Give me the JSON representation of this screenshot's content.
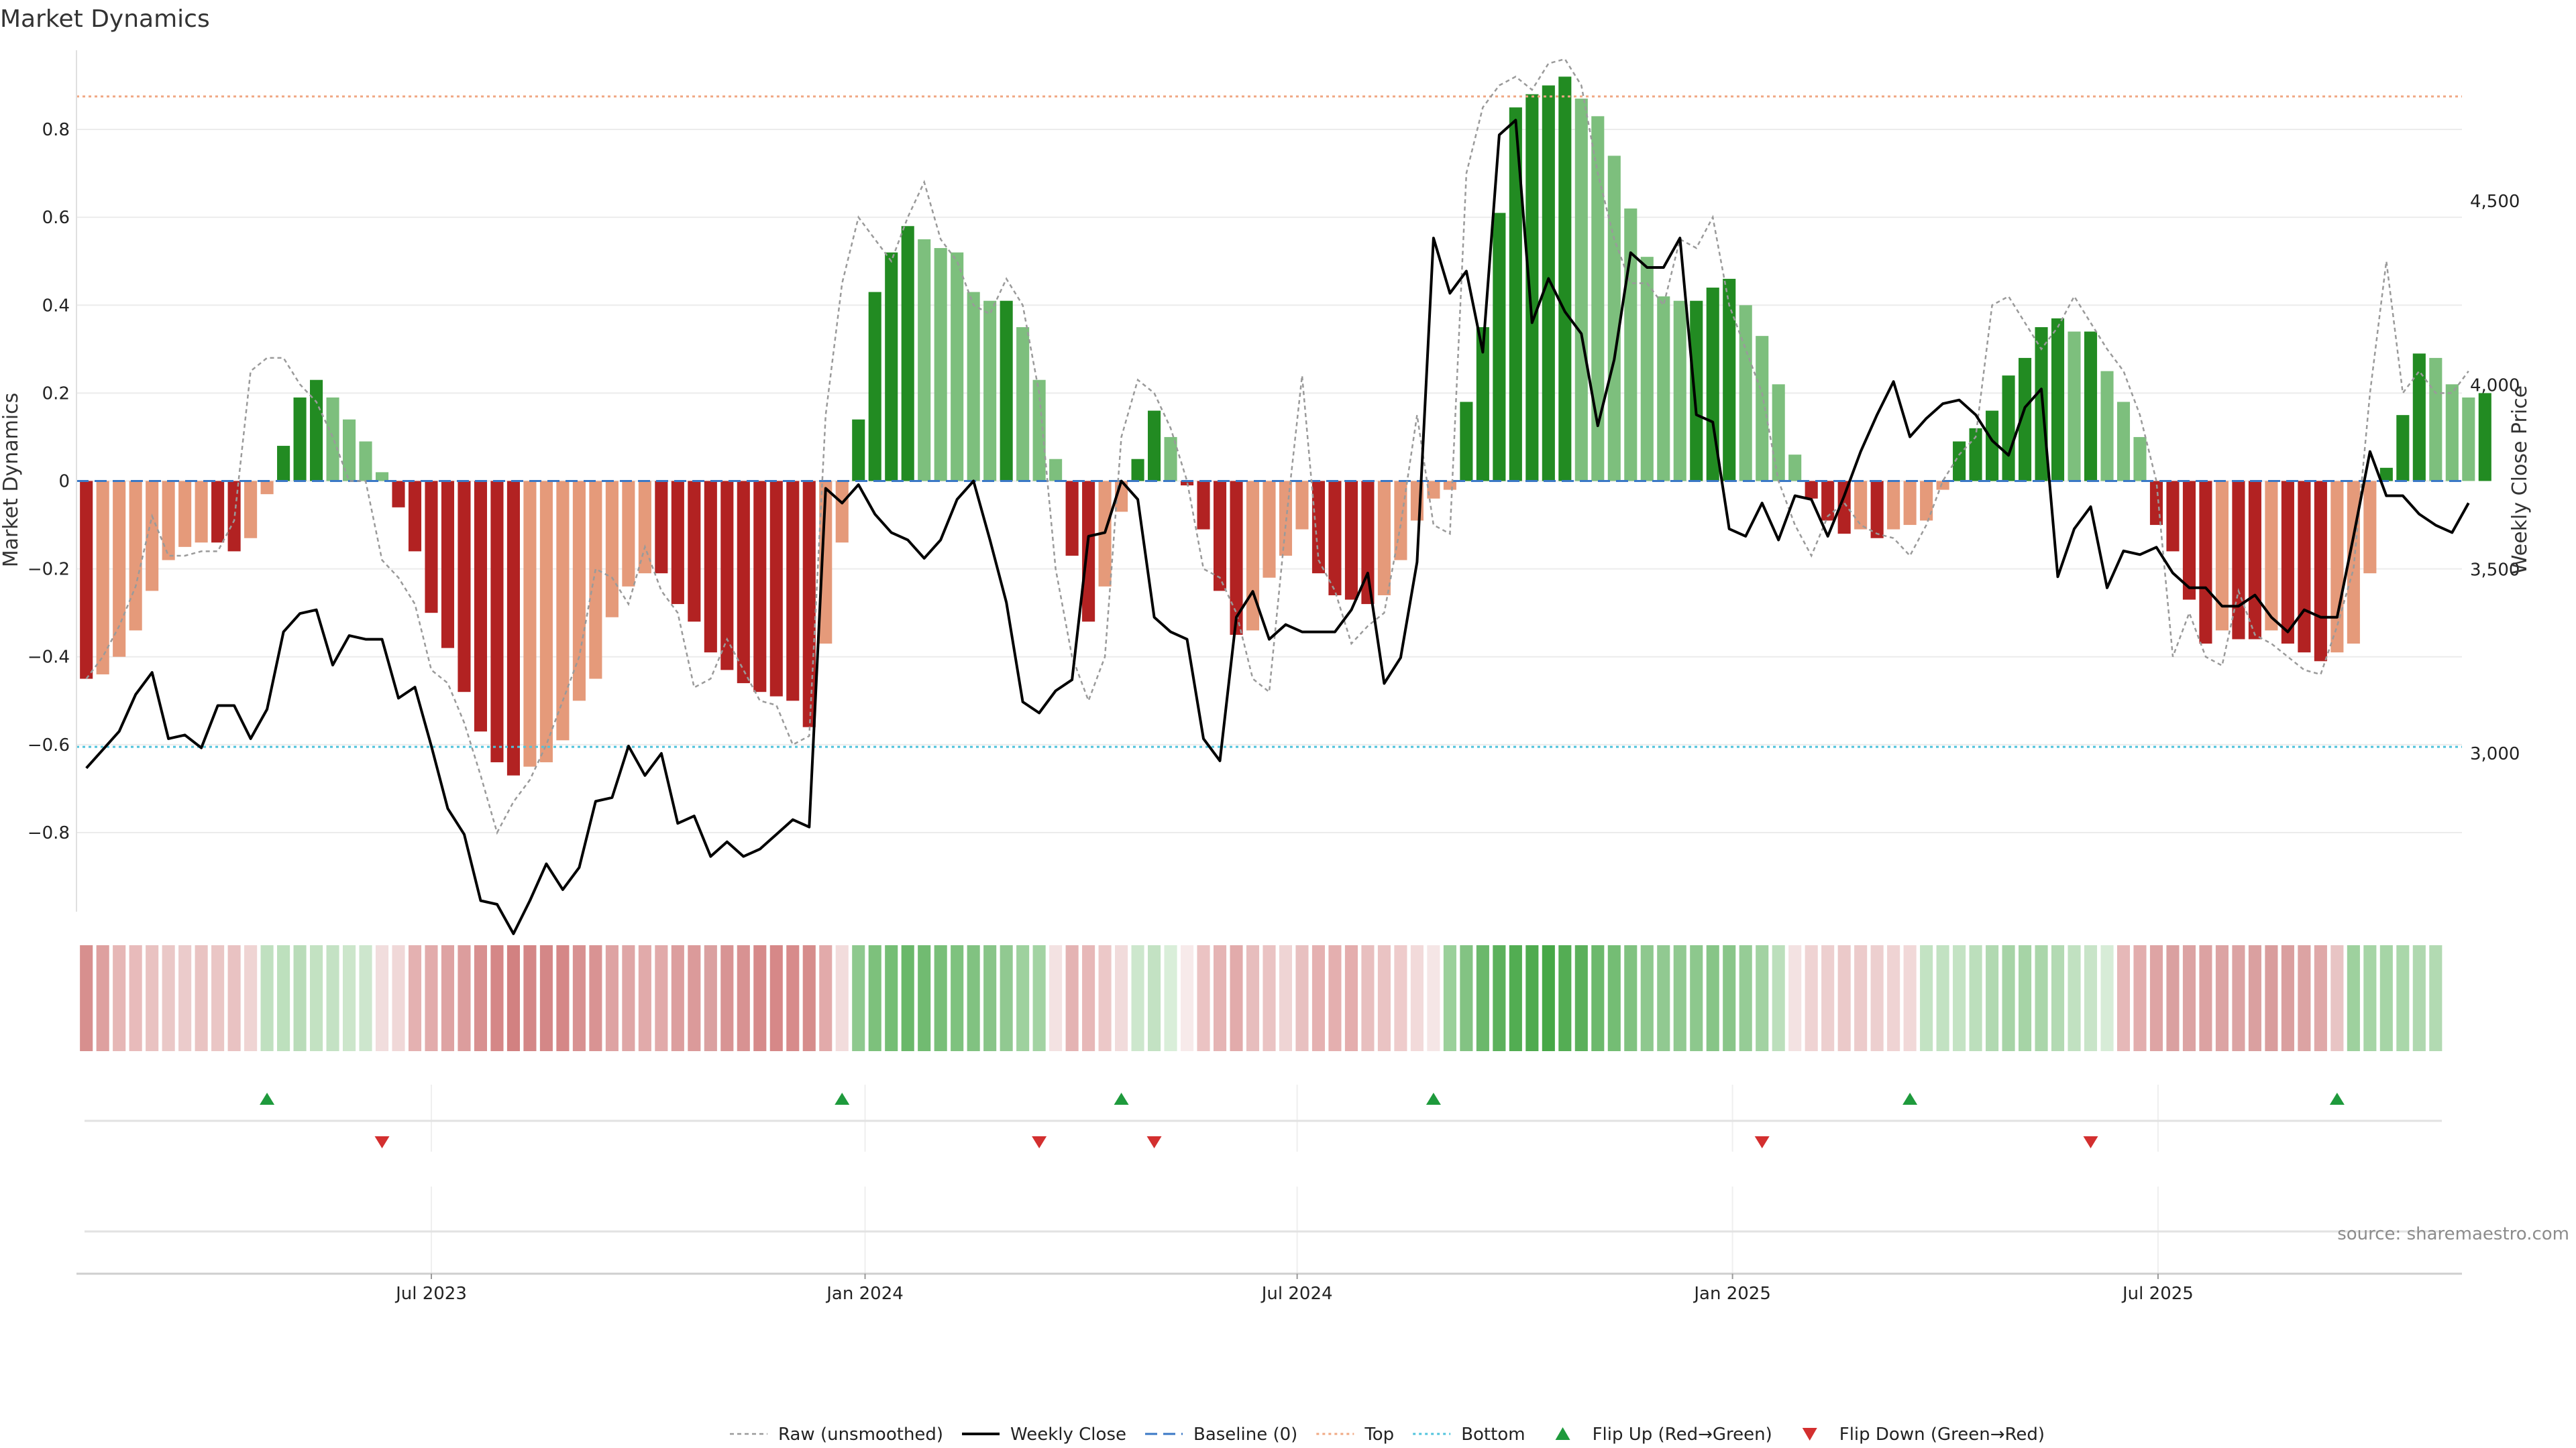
{
  "title": "Market Dynamics",
  "source": "source: sharemaestro.com",
  "chart_data": {
    "type": "bar+line",
    "title": "Market Dynamics",
    "ylabel": "Market Dynamics",
    "y2label": "Weekly Close Price",
    "ylim": [
      -0.98,
      0.98
    ],
    "y2lim": [
      2570,
      4910
    ],
    "yticks": [
      -0.8,
      -0.6,
      -0.4,
      -0.2,
      0,
      0.2,
      0.4,
      0.6,
      0.8
    ],
    "y2ticks": [
      3000,
      3500,
      4000,
      4500
    ],
    "ytick_labels": [
      "−0.8",
      "−0.6",
      "−0.4",
      "−0.2",
      "0",
      "0.2",
      "0.4",
      "0.6",
      "0.8"
    ],
    "y2tick_labels": [
      "3,000",
      "3,500",
      "4,000",
      "4,500"
    ],
    "top_line": 0.875,
    "bottom_line": -0.605,
    "xlim": [
      -0.6,
      144.6
    ],
    "xticks": [
      {
        "index": 21,
        "label": "Jul 2023"
      },
      {
        "index": 47.4,
        "label": "Jan 2024"
      },
      {
        "index": 73.7,
        "label": "Jul 2024"
      },
      {
        "index": 100.2,
        "label": "Jan 2025"
      },
      {
        "index": 126.1,
        "label": "Jul 2025"
      }
    ],
    "momentum": [
      -0.45,
      -0.44,
      -0.4,
      -0.34,
      -0.25,
      -0.18,
      -0.15,
      -0.14,
      -0.14,
      -0.16,
      -0.13,
      -0.03,
      0.08,
      0.19,
      0.23,
      0.19,
      0.14,
      0.09,
      0.02,
      -0.06,
      -0.16,
      -0.3,
      -0.38,
      -0.48,
      -0.57,
      -0.64,
      -0.67,
      -0.65,
      -0.64,
      -0.59,
      -0.5,
      -0.45,
      -0.31,
      -0.24,
      -0.21,
      -0.21,
      -0.28,
      -0.32,
      -0.39,
      -0.43,
      -0.46,
      -0.48,
      -0.49,
      -0.5,
      -0.56,
      -0.37,
      -0.14,
      0.14,
      0.43,
      0.52,
      0.58,
      0.55,
      0.53,
      0.52,
      0.43,
      0.41,
      0.41,
      0.35,
      0.23,
      0.05,
      -0.17,
      -0.32,
      -0.24,
      -0.07,
      0.05,
      0.16,
      0.1,
      -0.01,
      -0.11,
      -0.25,
      -0.35,
      -0.34,
      -0.22,
      -0.17,
      -0.11,
      -0.21,
      -0.26,
      -0.27,
      -0.28,
      -0.26,
      -0.18,
      -0.09,
      -0.04,
      -0.02,
      0.18,
      0.35,
      0.61,
      0.85,
      0.88,
      0.9,
      0.92,
      0.87,
      0.83,
      0.74,
      0.62,
      0.51,
      0.42,
      0.41,
      0.41,
      0.44,
      0.46,
      0.4,
      0.33,
      0.22,
      0.06,
      -0.04,
      -0.09,
      -0.12,
      -0.11,
      -0.13,
      -0.11,
      -0.1,
      -0.09,
      -0.02,
      0.09,
      0.12,
      0.16,
      0.24,
      0.28,
      0.35,
      0.37,
      0.34,
      0.34,
      0.25,
      0.18,
      0.1,
      -0.1,
      -0.16,
      -0.27,
      -0.37,
      -0.34,
      -0.36,
      -0.36,
      -0.34,
      -0.37,
      -0.39,
      -0.41,
      -0.39,
      -0.37,
      -0.21,
      0.03,
      0.15,
      0.29,
      0.28,
      0.22,
      0.19,
      0.2
    ],
    "raw": [
      -0.45,
      -0.4,
      -0.33,
      -0.24,
      -0.08,
      -0.17,
      -0.17,
      -0.16,
      -0.16,
      -0.09,
      0.25,
      0.28,
      0.28,
      0.22,
      0.18,
      0.1,
      0.0,
      0.0,
      -0.18,
      -0.22,
      -0.28,
      -0.43,
      -0.46,
      -0.55,
      -0.67,
      -0.8,
      -0.73,
      -0.68,
      -0.6,
      -0.5,
      -0.4,
      -0.2,
      -0.22,
      -0.28,
      -0.15,
      -0.25,
      -0.3,
      -0.47,
      -0.45,
      -0.36,
      -0.43,
      -0.5,
      -0.51,
      -0.6,
      -0.58,
      0.15,
      0.45,
      0.6,
      0.55,
      0.5,
      0.6,
      0.68,
      0.55,
      0.5,
      0.4,
      0.38,
      0.46,
      0.4,
      0.2,
      -0.2,
      -0.4,
      -0.5,
      -0.4,
      0.1,
      0.23,
      0.2,
      0.12,
      0.0,
      -0.2,
      -0.22,
      -0.3,
      -0.45,
      -0.48,
      -0.1,
      0.24,
      -0.18,
      -0.25,
      -0.37,
      -0.33,
      -0.3,
      -0.1,
      0.15,
      -0.1,
      -0.12,
      0.7,
      0.85,
      0.9,
      0.92,
      0.89,
      0.95,
      0.96,
      0.9,
      0.7,
      0.55,
      0.45,
      0.45,
      0.4,
      0.55,
      0.53,
      0.6,
      0.4,
      0.3,
      0.2,
      0.0,
      -0.1,
      -0.17,
      -0.08,
      -0.05,
      -0.1,
      -0.12,
      -0.13,
      -0.17,
      -0.1,
      0.0,
      0.06,
      0.1,
      0.4,
      0.42,
      0.36,
      0.3,
      0.35,
      0.42,
      0.36,
      0.3,
      0.25,
      0.15,
      0.0,
      -0.4,
      -0.3,
      -0.4,
      -0.42,
      -0.25,
      -0.35,
      -0.37,
      -0.4,
      -0.43,
      -0.44,
      -0.33,
      -0.2,
      0.2,
      0.5,
      0.2,
      0.25,
      0.2,
      0.2,
      0.25
    ],
    "weekly_close": [
      2960,
      3010,
      3060,
      3160,
      3220,
      3040,
      3050,
      3015,
      3130,
      3130,
      3040,
      3120,
      3330,
      3380,
      3390,
      3240,
      3320,
      3310,
      3310,
      3150,
      3180,
      3020,
      2850,
      2780,
      2600,
      2590,
      2510,
      2600,
      2700,
      2630,
      2690,
      2870,
      2880,
      3020,
      2940,
      3000,
      2810,
      2830,
      2720,
      2760,
      2720,
      2740,
      2780,
      2820,
      2800,
      3720,
      3680,
      3730,
      3650,
      3600,
      3580,
      3530,
      3580,
      3690,
      3740,
      3580,
      3410,
      3140,
      3110,
      3170,
      3200,
      3590,
      3600,
      3740,
      3690,
      3370,
      3330,
      3310,
      3040,
      2980,
      3370,
      3440,
      3310,
      3350,
      3330,
      3330,
      3330,
      3390,
      3490,
      3190,
      3260,
      3520,
      4400,
      4250,
      4310,
      4090,
      4680,
      4720,
      4170,
      4290,
      4200,
      4140,
      3890,
      4070,
      4360,
      4320,
      4320,
      4400,
      3920,
      3900,
      3610,
      3590,
      3680,
      3580,
      3700,
      3690,
      3590,
      3700,
      3820,
      3920,
      4010,
      3860,
      3910,
      3950,
      3960,
      3920,
      3850,
      3810,
      3940,
      3990,
      3480,
      3610,
      3670,
      3450,
      3550,
      3540,
      3560,
      3490,
      3450,
      3450,
      3400,
      3400,
      3430,
      3370,
      3330,
      3390,
      3370,
      3370,
      3590,
      3820,
      3700,
      3700,
      3650,
      3620,
      3600,
      3680
    ],
    "heat_colors": [
      "#d78f8e",
      "#dea09f",
      "#e6b7b6",
      "#e8bbbb",
      "#e9c2c1",
      "#eac8c7",
      "#ebcbcb",
      "#e9c3c2",
      "#eac6c5",
      "#e9c2c2",
      "#efd4d3",
      "#c0e0c0",
      "#bde0bd",
      "#b9dcb9",
      "#c3e2c2",
      "#c4e2c4",
      "#cce6cb",
      "#cde6cd",
      "#f1dddd",
      "#f0d8d8",
      "#e4b1b1",
      "#e2abab",
      "#dea3a3",
      "#dc9d9d",
      "#d89090",
      "#d58787",
      "#d28181",
      "#d48686",
      "#d48787",
      "#d58787",
      "#d89191",
      "#d99393",
      "#dea3a3",
      "#dfa6a6",
      "#e1aaaa",
      "#e1aaaa",
      "#dc9e9e",
      "#db9a9a",
      "#daa0a0",
      "#d89494",
      "#d89292",
      "#d68a8a",
      "#d68888",
      "#d78b8b",
      "#d68d8c",
      "#e2aaaa",
      "#f2dcdc",
      "#8ec98e",
      "#7dc17c",
      "#75be75",
      "#6ab86a",
      "#71bb71",
      "#78bf78",
      "#7ec27e",
      "#81c281",
      "#88c588",
      "#91c991",
      "#9ed19e",
      "#a3d3a3",
      "#f3e2e2",
      "#e4b3b3",
      "#e7b8b8",
      "#ecc8c8",
      "#f1dbdb",
      "#cde7cd",
      "#c3e2c3",
      "#d9eed9",
      "#f7eaea",
      "#ebc3c3",
      "#e5b4b4",
      "#e2abab",
      "#e7bdbd",
      "#eac3c3",
      "#efd4d4",
      "#e8c0c0",
      "#e5b1b1",
      "#e4afaf",
      "#e4adad",
      "#e8bfbf",
      "#eac3c3",
      "#eecbcb",
      "#f2dada",
      "#f5e6e6",
      "#9ad09a",
      "#83c383",
      "#6bb86b",
      "#5cb15c",
      "#52ad52",
      "#4fab4f",
      "#47a847",
      "#54ad54",
      "#5bb05b",
      "#6cb96c",
      "#74bd74",
      "#80c280",
      "#8ec88e",
      "#91c991",
      "#91c991",
      "#8dc88d",
      "#87c587",
      "#89c689",
      "#96cc96",
      "#a2d2a2",
      "#bcdfbc",
      "#f3e2e2",
      "#efd3d3",
      "#edcfcf",
      "#ebc9c9",
      "#eccbcb",
      "#edcfcf",
      "#efd3d3",
      "#f1d8d8",
      "#c3e3c3",
      "#c2e2c2",
      "#c4e3c4",
      "#bcdfbc",
      "#b1d9b1",
      "#a7d4a7",
      "#a6d4a6",
      "#aad6aa",
      "#b3dab3",
      "#c1e1c1",
      "#c8e4c8",
      "#d7ecd7",
      "#e6b8b8",
      "#e2adad",
      "#dea4a4",
      "#daa0a0",
      "#dca3a3",
      "#dca2a2",
      "#dca3a3",
      "#dca3a3",
      "#daa0a0",
      "#d99d9d",
      "#da9f9f",
      "#dca3a3",
      "#dfa8a8",
      "#e8c4c4",
      "#9ed19e",
      "#a6d5a6",
      "#a6d5a6",
      "#aad7aa",
      "#afd8af",
      "#b2dab2"
    ],
    "flip_up": [
      11,
      46,
      63,
      82,
      111,
      137
    ],
    "flip_down": [
      18,
      58,
      65,
      102,
      122
    ],
    "colors": {
      "strong_green": "#228b22",
      "light_green": "#7dbf7d",
      "strong_red": "#b22222",
      "light_red": "#e59a7a",
      "top": "#f0a883",
      "bottom": "#4fc3dc",
      "baseline": "#3a78c6",
      "raw": "#9a9a9a",
      "close": "#000000",
      "flip_up": "#1e9a3c",
      "flip_down": "#d32f2f"
    },
    "legend": {
      "placement": "bottom-center",
      "entries": [
        {
          "label": "Raw (unsmoothed)",
          "kind": "raw"
        },
        {
          "label": "Weekly Close",
          "kind": "close"
        },
        {
          "label": "Baseline (0)",
          "kind": "baseline"
        },
        {
          "label": "Top",
          "kind": "top"
        },
        {
          "label": "Bottom",
          "kind": "bottom"
        },
        {
          "label": "Flip Up (Red→Green)",
          "kind": "flip_up"
        },
        {
          "label": "Flip Down (Green→Red)",
          "kind": "flip_down"
        }
      ]
    }
  }
}
